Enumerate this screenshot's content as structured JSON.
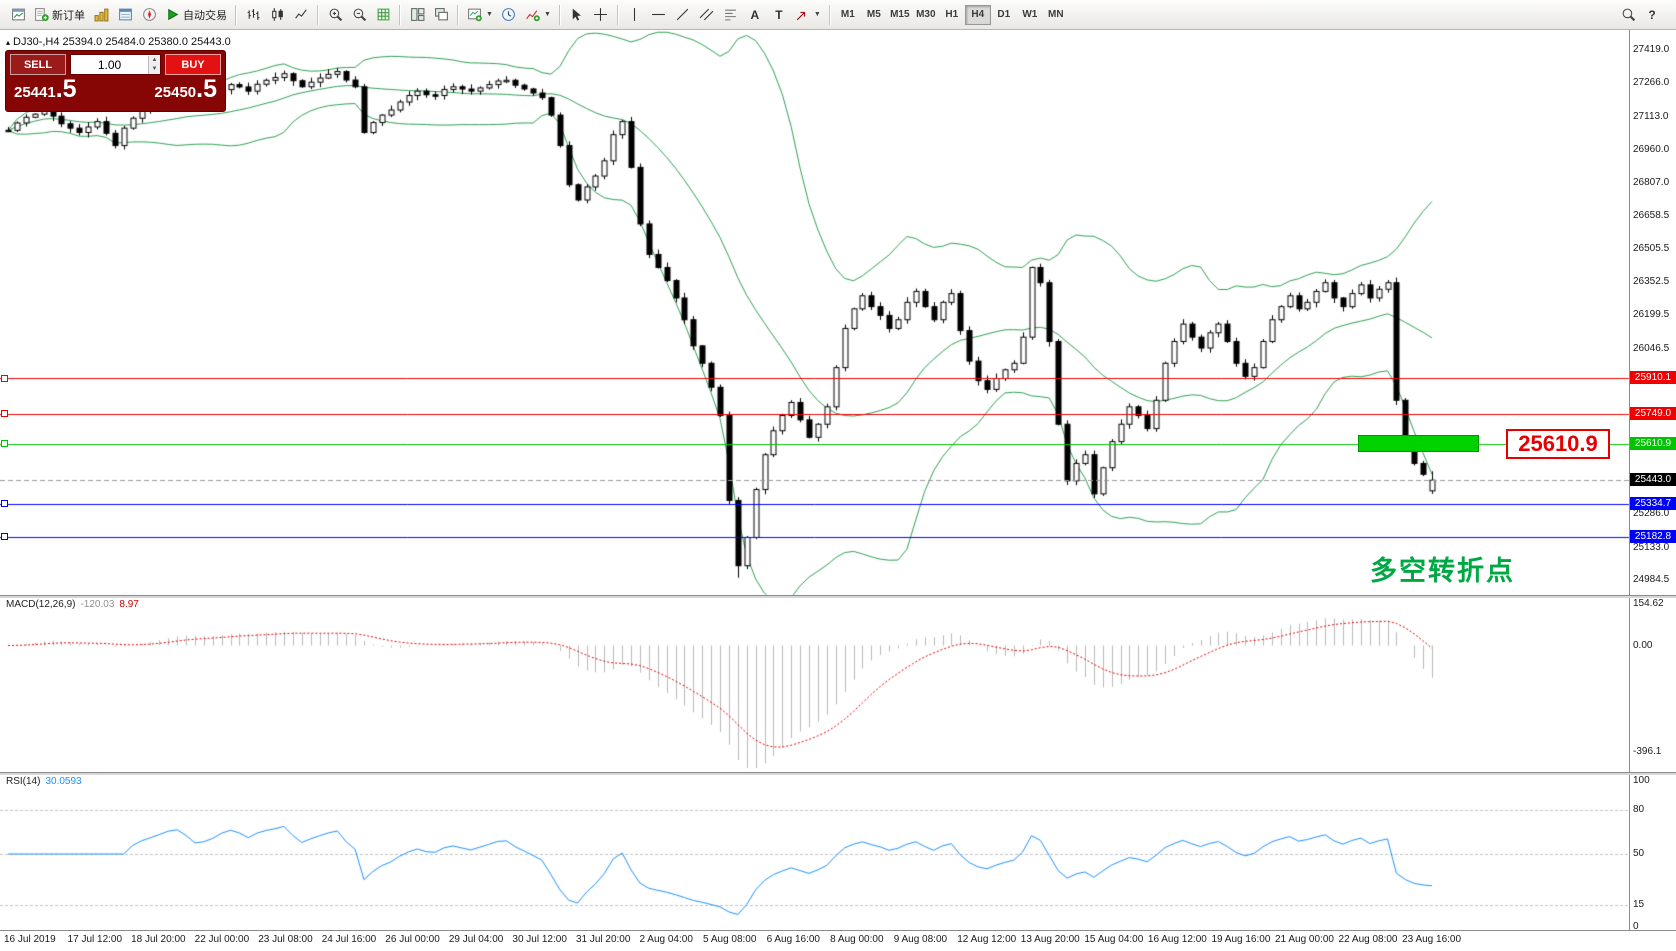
{
  "toolbar": {
    "new_order_label": "新订单",
    "auto_trading_label": "自动交易",
    "timeframes": [
      "M1",
      "M5",
      "M15",
      "M30",
      "H1",
      "H4",
      "D1",
      "W1",
      "MN"
    ],
    "active_timeframe": "H4"
  },
  "symbol_bar": {
    "text": "DJ30-,H4  25394.0 25484.0 25380.0 25443.0"
  },
  "one_click": {
    "sell_label": "SELL",
    "buy_label": "BUY",
    "volume": "1.00",
    "sell_price_main": "25441",
    "sell_price_pips": ".5",
    "buy_price_main": "25450",
    "buy_price_pips": ".5"
  },
  "price_axis_labels": [
    "27419.0",
    "27266.0",
    "27113.0",
    "26960.0",
    "26807.0",
    "26658.5",
    "26505.5",
    "26352.5",
    "26199.5",
    "26046.5",
    "25286.0",
    "25133.0",
    "24984.5"
  ],
  "current_price": {
    "label": "25443.0",
    "value": 25443.0
  },
  "levels": [
    {
      "value": 25910.1,
      "label": "25910.1",
      "color": "#f00000"
    },
    {
      "value": 25749.0,
      "label": "25749.0",
      "color": "#f00000"
    },
    {
      "value": 25610.9,
      "label": "25610.9",
      "color": "#00c400"
    },
    {
      "value": 25334.7,
      "label": "25334.7",
      "color": "#0000ff"
    },
    {
      "value": 25182.8,
      "label": "25182.8",
      "color": "#0000ff"
    }
  ],
  "annotations": {
    "pivot_price_label": "25610.9",
    "pivot_note": "多空转折点",
    "note_color": "#00a844",
    "highlight_color": "#00d200",
    "highlight_bar_start": 152,
    "highlight_bar_end": 165
  },
  "chart_data": {
    "type": "candlestick",
    "symbol": "DJ30-",
    "timeframe": "H4",
    "bars": 161,
    "price_axis": {
      "top_label_value": 27419.0,
      "bottom_label_value": 24984.5
    },
    "last_candle": {
      "open": 25394.0,
      "high": 25484.0,
      "low": 25380.0,
      "close": 25443.0
    },
    "session_low": 24995,
    "bollinger": {
      "period": 20,
      "deviation": 2,
      "color": "#2e9e53"
    },
    "close_anchors": [
      [
        0,
        27050
      ],
      [
        2,
        27110
      ],
      [
        4,
        27140
      ],
      [
        6,
        27080
      ],
      [
        8,
        27040
      ],
      [
        10,
        27090
      ],
      [
        12,
        26980
      ],
      [
        13,
        27060
      ],
      [
        15,
        27140
      ],
      [
        17,
        27190
      ],
      [
        19,
        27230
      ],
      [
        21,
        27170
      ],
      [
        23,
        27200
      ],
      [
        25,
        27260
      ],
      [
        27,
        27230
      ],
      [
        29,
        27280
      ],
      [
        31,
        27310
      ],
      [
        33,
        27250
      ],
      [
        35,
        27290
      ],
      [
        37,
        27320
      ],
      [
        39,
        27250
      ],
      [
        40,
        27040
      ],
      [
        42,
        27120
      ],
      [
        44,
        27180
      ],
      [
        46,
        27230
      ],
      [
        48,
        27210
      ],
      [
        50,
        27250
      ],
      [
        52,
        27230
      ],
      [
        54,
        27260
      ],
      [
        56,
        27280
      ],
      [
        58,
        27240
      ],
      [
        60,
        27200
      ],
      [
        61,
        27120
      ],
      [
        62,
        26980
      ],
      [
        63,
        26800
      ],
      [
        64,
        26730
      ],
      [
        65,
        26790
      ],
      [
        66,
        26840
      ],
      [
        67,
        26910
      ],
      [
        68,
        27030
      ],
      [
        69,
        27090
      ],
      [
        70,
        26880
      ],
      [
        71,
        26620
      ],
      [
        72,
        26480
      ],
      [
        73,
        26420
      ],
      [
        74,
        26360
      ],
      [
        75,
        26280
      ],
      [
        76,
        26180
      ],
      [
        77,
        26060
      ],
      [
        78,
        25980
      ],
      [
        79,
        25870
      ],
      [
        80,
        25740
      ],
      [
        81,
        25350
      ],
      [
        82,
        25050
      ],
      [
        83,
        25180
      ],
      [
        84,
        25400
      ],
      [
        85,
        25560
      ],
      [
        86,
        25670
      ],
      [
        87,
        25740
      ],
      [
        88,
        25800
      ],
      [
        89,
        25720
      ],
      [
        90,
        25640
      ],
      [
        91,
        25700
      ],
      [
        92,
        25780
      ],
      [
        93,
        25960
      ],
      [
        94,
        26140
      ],
      [
        95,
        26230
      ],
      [
        96,
        26290
      ],
      [
        97,
        26240
      ],
      [
        98,
        26200
      ],
      [
        99,
        26140
      ],
      [
        100,
        26180
      ],
      [
        101,
        26260
      ],
      [
        102,
        26310
      ],
      [
        103,
        26240
      ],
      [
        104,
        26180
      ],
      [
        105,
        26260
      ],
      [
        106,
        26300
      ],
      [
        107,
        26130
      ],
      [
        108,
        25990
      ],
      [
        109,
        25900
      ],
      [
        110,
        25860
      ],
      [
        111,
        25910
      ],
      [
        112,
        25950
      ],
      [
        113,
        25980
      ],
      [
        114,
        26100
      ],
      [
        115,
        26420
      ],
      [
        116,
        26350
      ],
      [
        117,
        26080
      ],
      [
        118,
        25700
      ],
      [
        119,
        25440
      ],
      [
        120,
        25520
      ],
      [
        121,
        25560
      ],
      [
        122,
        25380
      ],
      [
        123,
        25500
      ],
      [
        124,
        25620
      ],
      [
        125,
        25700
      ],
      [
        126,
        25780
      ],
      [
        127,
        25740
      ],
      [
        128,
        25680
      ],
      [
        129,
        25810
      ],
      [
        130,
        25980
      ],
      [
        131,
        26080
      ],
      [
        132,
        26160
      ],
      [
        133,
        26100
      ],
      [
        134,
        26050
      ],
      [
        135,
        26120
      ],
      [
        136,
        26160
      ],
      [
        137,
        26080
      ],
      [
        138,
        25980
      ],
      [
        139,
        25920
      ],
      [
        140,
        25960
      ],
      [
        141,
        26080
      ],
      [
        142,
        26180
      ],
      [
        143,
        26240
      ],
      [
        144,
        26290
      ],
      [
        145,
        26230
      ],
      [
        146,
        26260
      ],
      [
        147,
        26310
      ],
      [
        148,
        26350
      ],
      [
        149,
        26280
      ],
      [
        150,
        26240
      ],
      [
        151,
        26300
      ],
      [
        152,
        26340
      ],
      [
        153,
        26280
      ],
      [
        154,
        26320
      ],
      [
        155,
        26350
      ],
      [
        156,
        25810
      ],
      [
        157,
        25640
      ],
      [
        158,
        25520
      ],
      [
        159,
        25470
      ],
      [
        160,
        25443
      ]
    ],
    "macd": {
      "name": "MACD(12,26,9)",
      "main_value": "-120.03",
      "signal_value": "8.97",
      "axis_labels": [
        "154.62",
        "0.00",
        "-396.1"
      ],
      "axis_values": [
        154.62,
        0,
        -396.1
      ],
      "histogram_color": "#b8b8b8",
      "signal_color": "#e00000"
    },
    "rsi": {
      "name": "RSI(14)",
      "value": "30.0593",
      "axis_labels": [
        "100",
        "80",
        "50",
        "15",
        "0"
      ],
      "axis_values": [
        100,
        80,
        50,
        15,
        0
      ],
      "levels": [
        80,
        50,
        15
      ],
      "line_color": "#1e90ff"
    },
    "time_labels": [
      "16 Jul 2019",
      "17 Jul 12:00",
      "18 Jul 20:00",
      "22 Jul 00:00",
      "23 Jul 08:00",
      "24 Jul 16:00",
      "26 Jul 00:00",
      "29 Jul 04:00",
      "30 Jul 12:00",
      "31 Jul 20:00",
      "2 Aug 04:00",
      "5 Aug 08:00",
      "6 Aug 16:00",
      "8 Aug 00:00",
      "9 Aug 08:00",
      "12 Aug 12:00",
      "13 Aug 20:00",
      "15 Aug 04:00",
      "16 Aug 12:00",
      "19 Aug 16:00",
      "21 Aug 00:00",
      "22 Aug 08:00",
      "23 Aug 16:00"
    ]
  }
}
